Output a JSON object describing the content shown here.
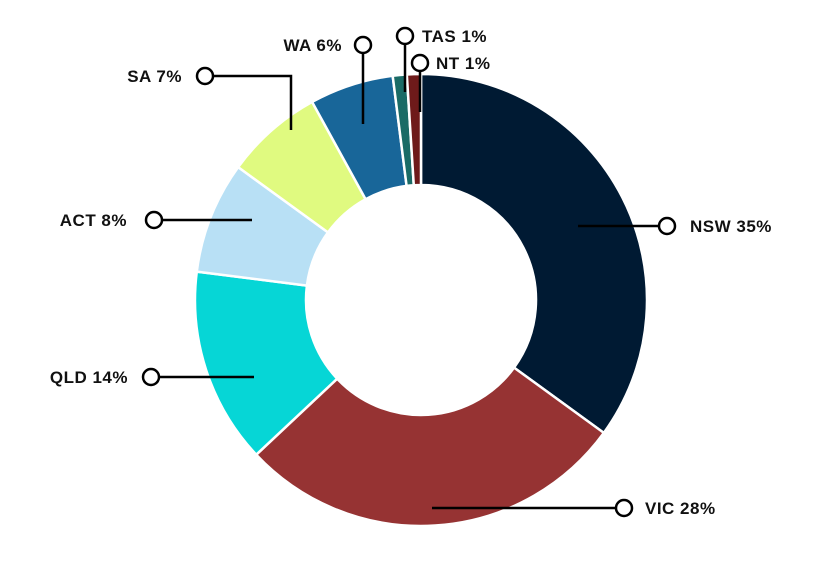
{
  "chart_data": {
    "type": "pie",
    "variant": "donut",
    "title": "",
    "start_angle_position": "top",
    "direction": "clockwise",
    "slices": [
      {
        "label": "NSW",
        "value": 35,
        "display": "NSW 35%",
        "color": "#001a33"
      },
      {
        "label": "VIC",
        "value": 28,
        "display": "VIC 28%",
        "color": "#963333"
      },
      {
        "label": "QLD",
        "value": 14,
        "display": "QLD 14%",
        "color": "#06d6d6"
      },
      {
        "label": "ACT",
        "value": 8,
        "display": "ACT 8%",
        "color": "#b8e0f5"
      },
      {
        "label": "SA",
        "value": 7,
        "display": "SA  7%",
        "color": "#e0fa80"
      },
      {
        "label": "WA",
        "value": 6,
        "display": "WA 6%",
        "color": "#186699"
      },
      {
        "label": "TAS",
        "value": 1,
        "display": "TAS  1%",
        "color": "#1a6b66"
      },
      {
        "label": "NT",
        "value": 1,
        "display": "NT  1%",
        "color": "#6e1a1a"
      }
    ]
  }
}
